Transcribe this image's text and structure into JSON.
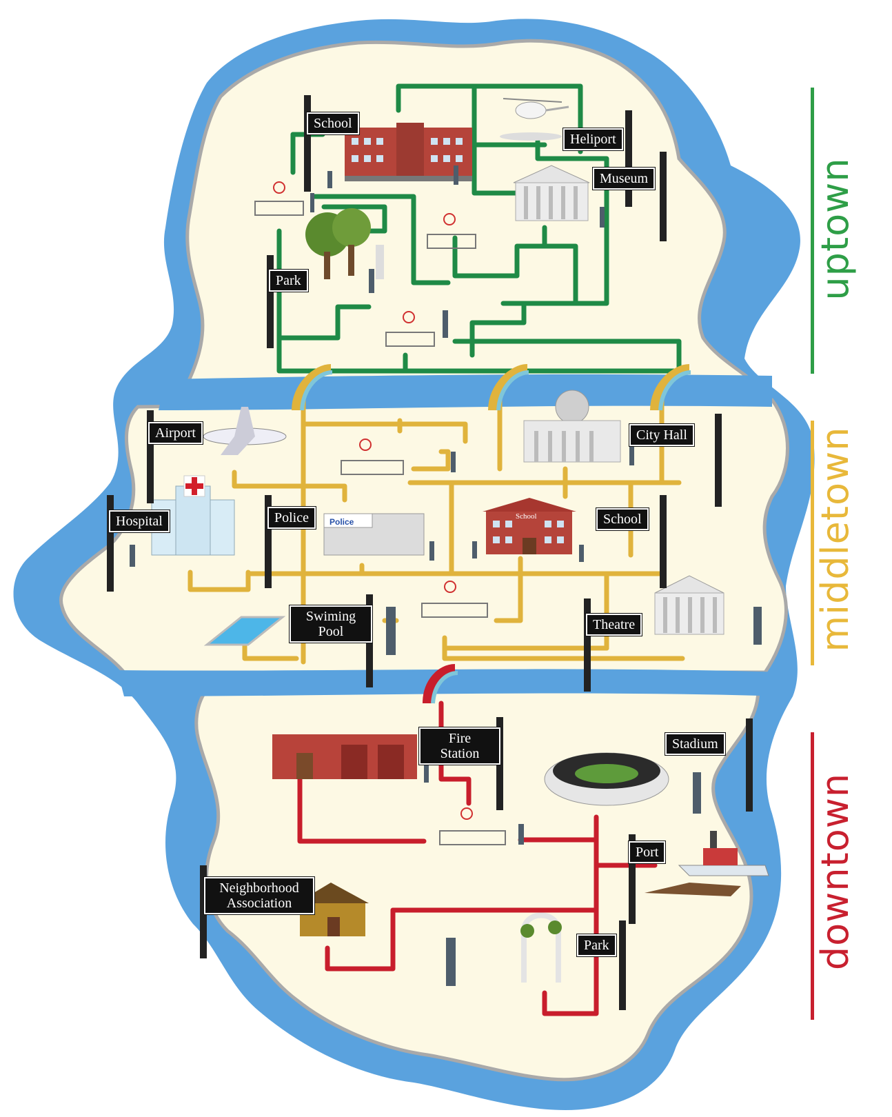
{
  "map": {
    "districts": [
      {
        "label": "uptown",
        "color": "#2e9e47"
      },
      {
        "label": "middletown",
        "color": "#e8b83a"
      },
      {
        "label": "downtown",
        "color": "#c8202f"
      }
    ],
    "colors": {
      "water": "#5aa2de",
      "land": "#fdf9e4",
      "shore": "#a9a9a9",
      "uptown_road": "#1f8a46",
      "middletown_road": "#e0b33c",
      "downtown_road": "#c81e2c"
    },
    "signs": {
      "up_school": "School",
      "heliport": "Heliport",
      "museum": "Museum",
      "up_park": "Park",
      "airport": "Airport",
      "city_hall": "City Hall",
      "hospital": "Hospital",
      "police": "Police",
      "mid_school": "School",
      "swimming_pool_1": "Swiming",
      "swimming_pool_2": "Pool",
      "theatre": "Theatre",
      "fire_station_1": "Fire",
      "fire_station_2": "Station",
      "stadium": "Stadium",
      "port": "Port",
      "neighborhood_1": "Neighborhood",
      "neighborhood_2": "Association",
      "down_park": "Park"
    },
    "building_labels": {
      "police_building": "Police",
      "school_building": "School"
    }
  }
}
